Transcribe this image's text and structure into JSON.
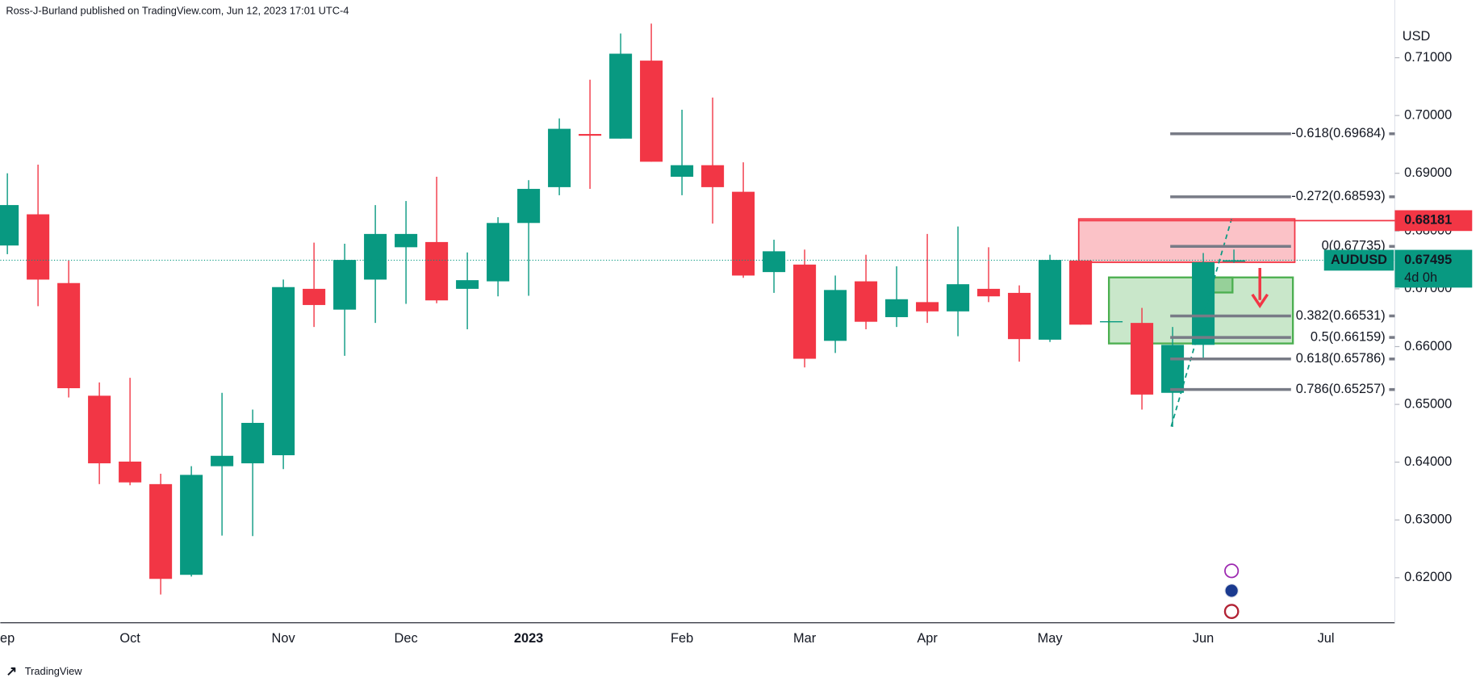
{
  "header": "Ross-J-Burland published on TradingView.com, Jun 12, 2023 17:01 UTC-4",
  "footer": "TradingView",
  "chart_data": {
    "type": "candlestick",
    "currency": "USD",
    "categories": [
      "ep",
      null,
      null,
      null,
      "Oct",
      null,
      null,
      null,
      null,
      "Nov",
      null,
      null,
      null,
      "Dec",
      null,
      null,
      null,
      "2023",
      null,
      null,
      null,
      null,
      "Feb",
      null,
      null,
      null,
      "Mar",
      null,
      null,
      null,
      "Apr",
      null,
      null,
      null,
      "May",
      null,
      null,
      null,
      null,
      "Jun",
      null,
      null,
      null,
      "Jul",
      null
    ],
    "open": [
      0.6775,
      0.6829,
      0.671,
      0.6515,
      0.6401,
      0.6362,
      0.6205,
      0.6393,
      0.6398,
      0.6412,
      0.67,
      0.6664,
      0.6716,
      0.6772,
      0.6781,
      0.67,
      0.6713,
      0.6814,
      0.6876,
      0.6968,
      0.696,
      0.7095,
      0.6894,
      0.6914,
      0.6868,
      0.6729,
      0.6742,
      0.661,
      0.6713,
      0.6651,
      0.6677,
      0.6661,
      0.67,
      0.6693,
      0.6612,
      0.6749,
      0.6644,
      0.6641,
      0.652,
      0.6603,
      0.6747,
      null,
      null,
      null,
      null
    ],
    "high": [
      0.69,
      0.6915,
      0.6749,
      0.6538,
      0.6546,
      0.638,
      0.6393,
      0.652,
      0.6491,
      0.6716,
      0.678,
      0.6778,
      0.6845,
      0.6852,
      0.6894,
      0.6763,
      0.6824,
      0.6888,
      0.6995,
      0.7062,
      0.7142,
      0.7159,
      0.701,
      0.7031,
      0.6919,
      0.6785,
      0.6768,
      0.6723,
      0.6759,
      0.6739,
      0.6795,
      0.6808,
      0.6772,
      0.6706,
      0.6759,
      0.6749,
      0.6644,
      0.6667,
      0.6634,
      0.6762,
      0.6768,
      null,
      null,
      null,
      null
    ],
    "low": [
      0.676,
      0.667,
      0.6512,
      0.6362,
      0.636,
      0.6171,
      0.6202,
      0.6273,
      0.6272,
      0.6388,
      0.6634,
      0.6584,
      0.6641,
      0.6674,
      0.6675,
      0.663,
      0.6687,
      0.6688,
      0.6862,
      0.6873,
      0.696,
      0.692,
      0.6862,
      0.6813,
      0.6719,
      0.6693,
      0.6564,
      0.6589,
      0.663,
      0.6634,
      0.6641,
      0.6618,
      0.6677,
      0.6574,
      0.6608,
      0.6638,
      0.6644,
      0.6491,
      0.6461,
      0.6579,
      0.6745,
      null,
      null,
      null,
      null
    ],
    "close": [
      0.6845,
      0.6716,
      0.6528,
      0.6398,
      0.6365,
      0.6198,
      0.6378,
      0.6411,
      0.6468,
      0.6703,
      0.6672,
      0.675,
      0.6795,
      0.6795,
      0.668,
      0.6715,
      0.6814,
      0.6873,
      0.6977,
      0.6965,
      0.7107,
      0.692,
      0.6914,
      0.6876,
      0.6723,
      0.6765,
      0.6579,
      0.6698,
      0.6643,
      0.6682,
      0.6661,
      0.6708,
      0.6687,
      0.6613,
      0.675,
      0.6638,
      0.6644,
      0.6517,
      0.6603,
      0.6746,
      0.67495,
      null,
      null,
      null,
      null
    ],
    "up_color": "#089981",
    "down_color": "#f23645",
    "ylim": [
      0.6122,
      0.7164
    ],
    "yticks": [
      {
        "value": 0.62,
        "label": "0.62000"
      },
      {
        "value": 0.63,
        "label": "0.63000"
      },
      {
        "value": 0.64,
        "label": "0.64000"
      },
      {
        "value": 0.65,
        "label": "0.65000"
      },
      {
        "value": 0.66,
        "label": "0.66000"
      },
      {
        "value": 0.67,
        "label": "0.67000"
      },
      {
        "value": 0.68,
        "label": "0.68000"
      },
      {
        "value": 0.69,
        "label": "0.69000"
      },
      {
        "value": 0.7,
        "label": "0.70000"
      },
      {
        "value": 0.71,
        "label": "0.71000"
      }
    ],
    "fib_levels": [
      {
        "value": 0.69684,
        "label": "-0.618(0.69684)"
      },
      {
        "value": 0.68593,
        "label": "-0.272(0.68593)"
      },
      {
        "value": 0.67735,
        "label": "0(0.67735)"
      },
      {
        "value": 0.66531,
        "label": "0.382(0.66531)"
      },
      {
        "value": 0.66159,
        "label": "0.5(0.66159)"
      },
      {
        "value": 0.65786,
        "label": "0.618(0.65786)"
      },
      {
        "value": 0.65257,
        "label": "0.786(0.65257)"
      }
    ],
    "level_tag": {
      "value": 0.68181,
      "color": "#f23645"
    },
    "last_price": {
      "symbol": "AUDUSD",
      "value": 0.67495,
      "countdown": "4d 0h",
      "color": "#089981"
    }
  }
}
